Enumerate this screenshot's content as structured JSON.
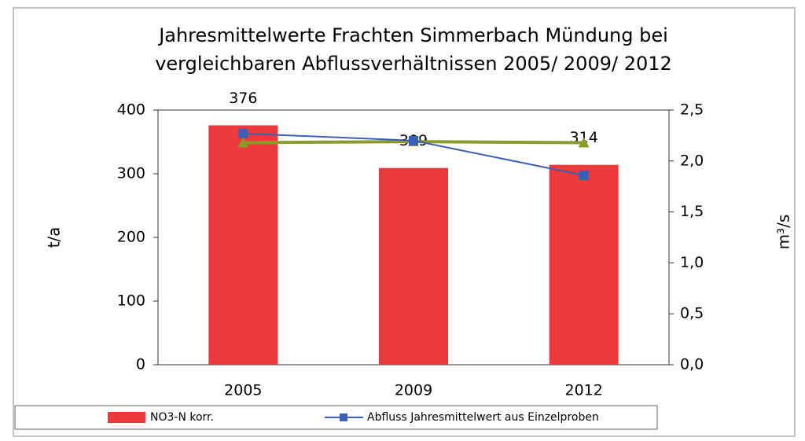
{
  "chart_data": {
    "type": "bar-line",
    "title": [
      "Jahresmittelwerte Frachten Simmerbach  Mündung bei",
      "vergleichbaren Abflussverhältnissen 2005/ 2009/ 2012"
    ],
    "ylabel": "t/a",
    "y2label": "m³/s",
    "categories": [
      "2005",
      "2009",
      "2012"
    ],
    "series": [
      {
        "name": "NO3-N korr.",
        "type": "bar",
        "color": "#ee3a3c",
        "values": [
          376,
          309,
          314
        ]
      },
      {
        "name": "Abfluss Jahresmittelwert aus Einzelproben",
        "type": "line",
        "marker": "square",
        "color": "#3a5fb4",
        "axis": "y2",
        "values": [
          2.27,
          2.2,
          1.86
        ]
      },
      {
        "type": "line",
        "marker": "triangle",
        "color": "#8c9a2c",
        "axis": "y2",
        "values": [
          2.18,
          2.19,
          2.18
        ]
      }
    ],
    "ylim": [
      0,
      400
    ],
    "yticks": [
      0,
      100,
      200,
      300,
      400
    ],
    "y2lim": [
      0,
      2.5
    ],
    "y2ticks": [
      {
        "value": 0,
        "label": "0,0"
      },
      {
        "value": 0.5,
        "label": "0,5"
      },
      {
        "value": 1,
        "label": "1,0"
      },
      {
        "value": 1.5,
        "label": "1,5"
      },
      {
        "value": 2,
        "label": "2,0"
      },
      {
        "value": 2.5,
        "label": "2,5"
      }
    ],
    "grid": false,
    "legend": "bottom"
  }
}
